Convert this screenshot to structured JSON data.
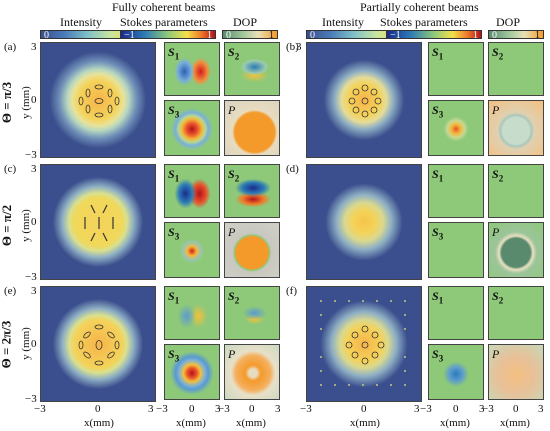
{
  "column_headers": {
    "fully": "Fully coherent beams",
    "partially": "Partially coherent beams"
  },
  "colorbar_titles": {
    "intensity": "Intensity",
    "stokes": "Stokes parameters",
    "dop": "DOP"
  },
  "colorbar_ticks": {
    "intensity_min": "0",
    "intensity_max": "1",
    "stokes_min": "−1",
    "stokes_max": "1",
    "dop_min": "0",
    "dop_max": "1"
  },
  "row_labels": [
    "Θ = π/3",
    "Θ = π/2",
    "Θ = 2π/3"
  ],
  "panel_labels": [
    "(a)",
    "(b)",
    "(c)",
    "(d)",
    "(e)",
    "(f)"
  ],
  "sub_labels": {
    "s1": "S",
    "s1_sub": "1",
    "s2": "S",
    "s2_sub": "2",
    "s3": "S",
    "s3_sub": "3",
    "p": "P"
  },
  "axis": {
    "y_label": "y (mm)",
    "x_label": "x(mm)",
    "tick_pos": "3",
    "tick_zero": "0",
    "tick_neg": "−3",
    "small_tick_neg": "−3",
    "small_tick_zero": "0",
    "small_tick_pos": "3"
  },
  "colors": {
    "background_blue": "#3b4f8e",
    "field_green": "#8ec97a",
    "spot_yellow": "#f2dc5a",
    "spot_orange": "#f6a23c",
    "stokes_red": "#d7191c",
    "stokes_blue": "#2c7bb6",
    "dop_orange": "#f49a2a"
  }
}
